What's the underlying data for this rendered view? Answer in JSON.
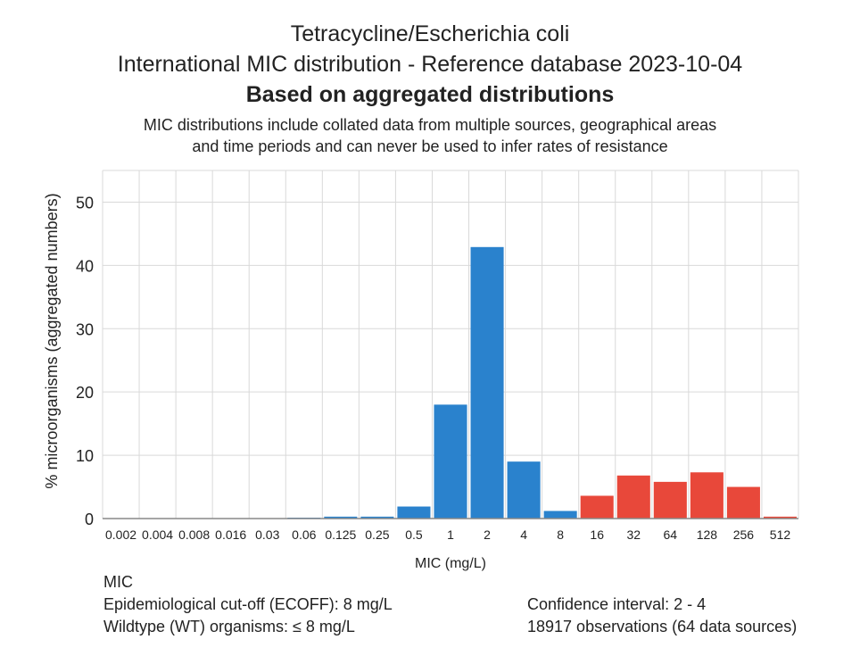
{
  "header": {
    "title_line1": "Tetracycline/Escherichia coli",
    "title_line2": "International MIC distribution - Reference database 2023-10-04",
    "title_line3": "Based on aggregated distributions",
    "subtitle_line1": "MIC distributions include collated data from multiple sources, geographical areas",
    "subtitle_line2": "and time periods and can never be used to infer rates of resistance"
  },
  "footer": {
    "mic_label": "MIC",
    "ecoff": "Epidemiological cut-off (ECOFF): 8 mg/L",
    "wildtype": "Wildtype (WT) organisms: ≤ 8 mg/L",
    "confidence": "Confidence interval: 2 - 4",
    "observations": "18917 observations (64 data sources)"
  },
  "colors": {
    "wildtype_bar": "#2a82cd",
    "nonwildtype_bar": "#e8483a",
    "grid": "#d9d9d9"
  },
  "chart_data": {
    "type": "bar",
    "categories": [
      "0.002",
      "0.004",
      "0.008",
      "0.016",
      "0.03",
      "0.06",
      "0.125",
      "0.25",
      "0.5",
      "1",
      "2",
      "4",
      "8",
      "16",
      "32",
      "64",
      "128",
      "256",
      "512"
    ],
    "values": [
      0,
      0,
      0,
      0,
      0,
      0.05,
      0.3,
      0.3,
      1.9,
      18.0,
      42.9,
      9.0,
      1.2,
      3.6,
      6.8,
      5.8,
      7.3,
      5.0,
      0.3
    ],
    "ecoff_category": "8",
    "xlabel": "MIC (mg/L)",
    "ylabel": "% microorganisms (aggregated numbers)",
    "ylim": [
      0,
      55
    ],
    "yticks": [
      0,
      10,
      20,
      30,
      40,
      50
    ],
    "grid": true,
    "legend": "none"
  }
}
